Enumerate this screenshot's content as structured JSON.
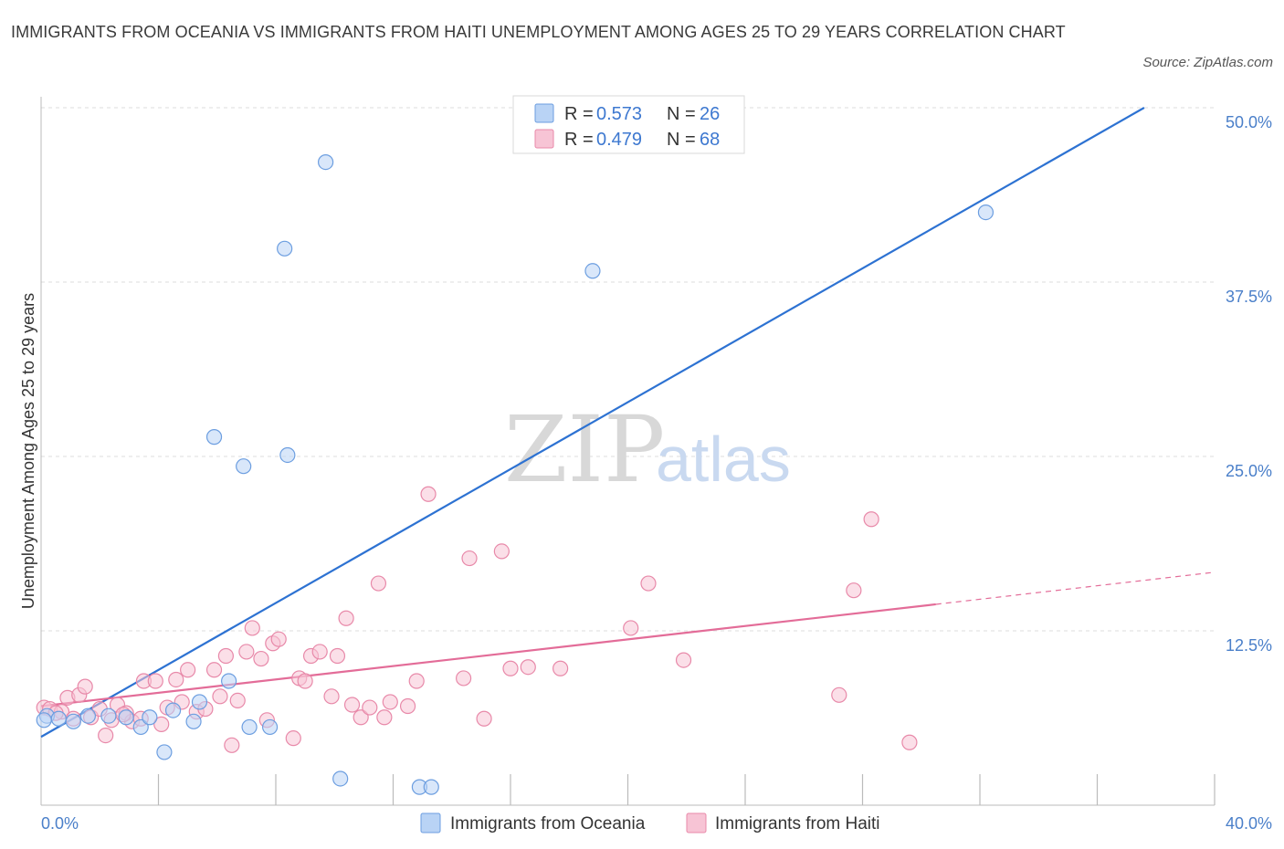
{
  "title": "IMMIGRANTS FROM OCEANIA VS IMMIGRANTS FROM HAITI UNEMPLOYMENT AMONG AGES 25 TO 29 YEARS CORRELATION CHART",
  "source": "Source: ZipAtlas.com",
  "watermark": {
    "zip": "ZIP",
    "atlas": "atlas"
  },
  "colors": {
    "oceania_fill": "#b9d3f5",
    "oceania_stroke": "#6c9ee0",
    "oceania_line": "#2d72d2",
    "haiti_fill": "#f7c4d5",
    "haiti_stroke": "#e889a9",
    "haiti_line": "#e36c98",
    "grid": "#dddddd",
    "tick_text": "#4a7fc9"
  },
  "legend": {
    "rows": [
      {
        "r_label": "R =",
        "r_value": "0.573",
        "n_label": "N =",
        "n_value": "26"
      },
      {
        "r_label": "R =",
        "r_value": "0.479",
        "n_label": "N =",
        "n_value": "68"
      }
    ]
  },
  "chart_data": {
    "type": "scatter",
    "title": "IMMIGRANTS FROM OCEANIA VS IMMIGRANTS FROM HAITI UNEMPLOYMENT AMONG AGES 25 TO 29 YEARS CORRELATION CHART",
    "xlabel": "",
    "ylabel": "Unemployment Among Ages 25 to 29 years",
    "xlim": [
      0,
      40
    ],
    "ylim": [
      0,
      50
    ],
    "x_tick_labels": [
      "0.0%",
      "40.0%"
    ],
    "y_ticks": [
      12.5,
      25.0,
      37.5,
      50.0
    ],
    "y_tick_labels": [
      "12.5%",
      "25.0%",
      "37.5%",
      "50.0%"
    ],
    "grid": true,
    "legend_position": "top-center",
    "series": [
      {
        "name": "Immigrants from Oceania",
        "R": 0.573,
        "N": 26,
        "trend": {
          "x": [
            0,
            37.6
          ],
          "y": [
            4.9,
            50.0
          ]
        },
        "points": [
          [
            0.2,
            6.4
          ],
          [
            0.6,
            6.2
          ],
          [
            1.1,
            6.0
          ],
          [
            1.6,
            6.4
          ],
          [
            2.3,
            6.4
          ],
          [
            2.9,
            6.3
          ],
          [
            3.4,
            5.6
          ],
          [
            3.7,
            6.3
          ],
          [
            4.2,
            3.8
          ],
          [
            4.5,
            6.8
          ],
          [
            5.2,
            6.0
          ],
          [
            5.4,
            7.4
          ],
          [
            5.9,
            26.4
          ],
          [
            6.4,
            8.9
          ],
          [
            6.9,
            24.3
          ],
          [
            7.1,
            5.6
          ],
          [
            8.3,
            39.9
          ],
          [
            8.4,
            25.1
          ],
          [
            7.8,
            5.6
          ],
          [
            9.7,
            46.1
          ],
          [
            10.2,
            1.9
          ],
          [
            12.9,
            1.3
          ],
          [
            13.3,
            1.3
          ],
          [
            18.8,
            38.3
          ],
          [
            32.2,
            42.5
          ],
          [
            0.1,
            6.1
          ]
        ]
      },
      {
        "name": "Immigrants from Haiti",
        "R": 0.479,
        "N": 68,
        "trend": {
          "x": [
            0,
            30.5
          ],
          "y": [
            7.1,
            14.4
          ]
        },
        "trend_extension": {
          "x": [
            30.5,
            40
          ],
          "y": [
            14.4,
            16.7
          ]
        },
        "points": [
          [
            0.1,
            7.0
          ],
          [
            0.3,
            6.9
          ],
          [
            0.7,
            6.7
          ],
          [
            0.9,
            7.7
          ],
          [
            1.1,
            6.2
          ],
          [
            1.3,
            7.9
          ],
          [
            1.5,
            8.5
          ],
          [
            1.7,
            6.3
          ],
          [
            2.0,
            6.9
          ],
          [
            2.2,
            5.0
          ],
          [
            2.4,
            6.1
          ],
          [
            2.6,
            7.2
          ],
          [
            2.9,
            6.6
          ],
          [
            3.1,
            6.0
          ],
          [
            3.4,
            6.2
          ],
          [
            3.5,
            8.9
          ],
          [
            3.9,
            8.9
          ],
          [
            4.1,
            5.8
          ],
          [
            4.3,
            7.0
          ],
          [
            4.6,
            9.0
          ],
          [
            4.8,
            7.4
          ],
          [
            5.0,
            9.7
          ],
          [
            5.3,
            6.7
          ],
          [
            5.6,
            6.9
          ],
          [
            5.9,
            9.7
          ],
          [
            6.1,
            7.8
          ],
          [
            6.3,
            10.7
          ],
          [
            6.5,
            4.3
          ],
          [
            6.7,
            7.5
          ],
          [
            7.0,
            11.0
          ],
          [
            7.2,
            12.7
          ],
          [
            7.5,
            10.5
          ],
          [
            7.7,
            6.1
          ],
          [
            7.9,
            11.6
          ],
          [
            8.1,
            11.9
          ],
          [
            8.6,
            4.8
          ],
          [
            8.8,
            9.1
          ],
          [
            9.0,
            8.9
          ],
          [
            9.2,
            10.7
          ],
          [
            9.5,
            11.0
          ],
          [
            9.9,
            7.8
          ],
          [
            10.1,
            10.7
          ],
          [
            10.4,
            13.4
          ],
          [
            10.6,
            7.2
          ],
          [
            10.9,
            6.3
          ],
          [
            11.2,
            7.0
          ],
          [
            11.5,
            15.9
          ],
          [
            11.7,
            6.3
          ],
          [
            11.9,
            7.4
          ],
          [
            12.5,
            7.1
          ],
          [
            12.8,
            8.9
          ],
          [
            13.2,
            22.3
          ],
          [
            14.4,
            9.1
          ],
          [
            14.6,
            17.7
          ],
          [
            15.1,
            6.2
          ],
          [
            15.7,
            18.2
          ],
          [
            16.0,
            9.8
          ],
          [
            16.6,
            9.9
          ],
          [
            17.7,
            9.8
          ],
          [
            20.1,
            12.7
          ],
          [
            20.7,
            15.9
          ],
          [
            21.9,
            10.4
          ],
          [
            27.2,
            7.9
          ],
          [
            27.7,
            15.4
          ],
          [
            28.3,
            20.5
          ],
          [
            29.6,
            4.5
          ],
          [
            0.5,
            6.6
          ],
          [
            2.8,
            6.5
          ]
        ]
      }
    ]
  }
}
